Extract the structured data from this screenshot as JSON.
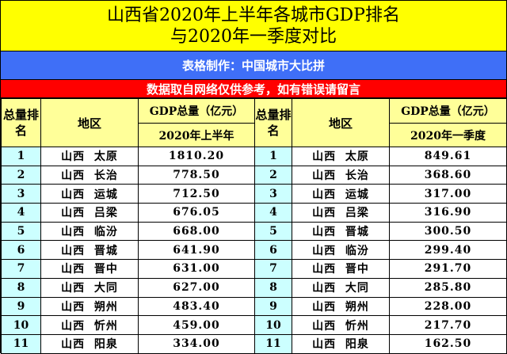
{
  "title": {
    "line1": "山西省2020年上半年各城市GDP排名",
    "line2": "与2020年一季度对比"
  },
  "maker_band": "表格制作：中国城市大比拼",
  "note_band": "数据取自网络仅供参考，如有错误请留言",
  "colors": {
    "title_bg": "#ffff00",
    "maker_bg": "#3f6ff7",
    "note_bg": "#ff0000",
    "header_bg": "#ffff99",
    "rank_bg": "#ccffff"
  },
  "left_table": {
    "headers": {
      "rank": "总量排名",
      "region": "地区",
      "gdp": "GDP总量（亿元）",
      "period": "2020年上半年"
    },
    "rows": [
      {
        "rank": "1",
        "region": "山西  太原",
        "value": "1810.20"
      },
      {
        "rank": "2",
        "region": "山西  长治",
        "value": "778.50"
      },
      {
        "rank": "3",
        "region": "山西  运城",
        "value": "712.50"
      },
      {
        "rank": "4",
        "region": "山西  吕梁",
        "value": "676.05"
      },
      {
        "rank": "5",
        "region": "山西  临汾",
        "value": "668.00"
      },
      {
        "rank": "6",
        "region": "山西  晋城",
        "value": "641.90"
      },
      {
        "rank": "7",
        "region": "山西  晋中",
        "value": "631.00"
      },
      {
        "rank": "8",
        "region": "山西  大同",
        "value": "627.00"
      },
      {
        "rank": "9",
        "region": "山西  朔州",
        "value": "483.40"
      },
      {
        "rank": "10",
        "region": "山西  忻州",
        "value": "459.00"
      },
      {
        "rank": "11",
        "region": "山西  阳泉",
        "value": "334.00"
      }
    ]
  },
  "right_table": {
    "headers": {
      "rank": "总量排名",
      "region": "地区",
      "gdp": "GDP总量（亿元）",
      "period": "2020年一季度"
    },
    "rows": [
      {
        "rank": "1",
        "region": "山西  太原",
        "value": "849.61"
      },
      {
        "rank": "2",
        "region": "山西  长治",
        "value": "368.60"
      },
      {
        "rank": "3",
        "region": "山西  运城",
        "value": "317.00"
      },
      {
        "rank": "4",
        "region": "山西  吕梁",
        "value": "316.90"
      },
      {
        "rank": "5",
        "region": "山西  晋城",
        "value": "300.50"
      },
      {
        "rank": "6",
        "region": "山西  临汾",
        "value": "299.40"
      },
      {
        "rank": "7",
        "region": "山西  晋中",
        "value": "291.70"
      },
      {
        "rank": "8",
        "region": "山西  大同",
        "value": "285.80"
      },
      {
        "rank": "9",
        "region": "山西  朔州",
        "value": "228.00"
      },
      {
        "rank": "10",
        "region": "山西  忻州",
        "value": "217.70"
      },
      {
        "rank": "11",
        "region": "山西  阳泉",
        "value": "162.50"
      }
    ]
  }
}
